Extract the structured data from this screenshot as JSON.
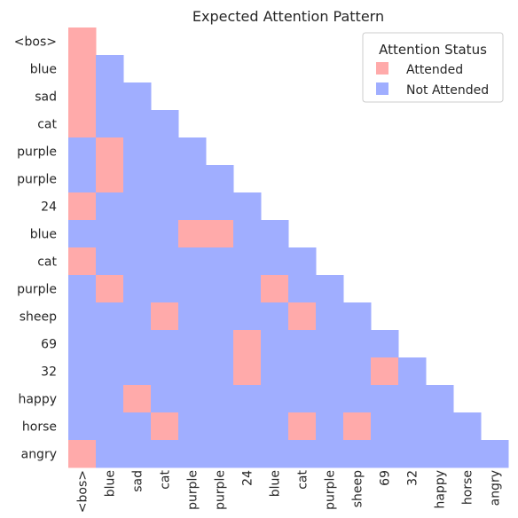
{
  "chart_data": {
    "type": "heatmap",
    "title": "Expected Attention Pattern",
    "xlabel": "",
    "ylabel": "",
    "tokens": [
      "<bos>",
      "blue",
      "sad",
      "cat",
      "purple",
      "purple",
      "24",
      "blue",
      "cat",
      "purple",
      "sheep",
      "69",
      "32",
      "happy",
      "horse",
      "angry"
    ],
    "mask": "lower-triangular (causal); cells above the diagonal are blank",
    "attended": [
      [
        0
      ],
      [
        0
      ],
      [
        0
      ],
      [
        0
      ],
      [
        1
      ],
      [
        1
      ],
      [
        0
      ],
      [
        4,
        5
      ],
      [
        0
      ],
      [
        1,
        7
      ],
      [
        3,
        8
      ],
      [
        6
      ],
      [
        6,
        11
      ],
      [
        2
      ],
      [
        3,
        8,
        10
      ],
      [
        0
      ]
    ],
    "colors": {
      "attended": "#ffaaaa",
      "not_attended": "#a0aeff"
    },
    "legend": {
      "title": "Attention Status",
      "entries": [
        "Attended",
        "Not Attended"
      ],
      "placement": "top-right"
    }
  }
}
